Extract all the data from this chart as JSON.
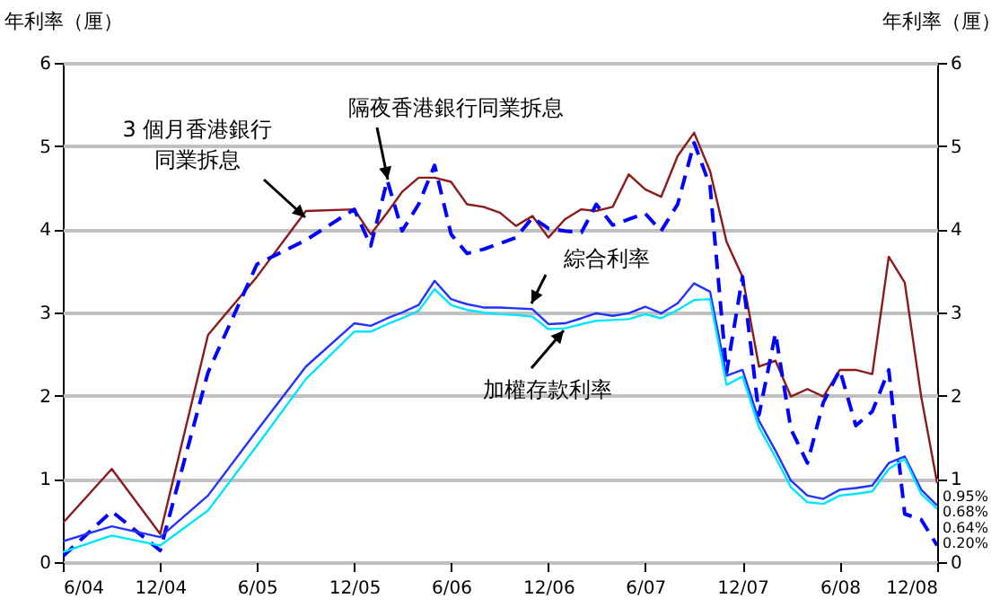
{
  "chart_data": {
    "type": "line",
    "ylabel": "年利率（厘）",
    "y2label": "年利率（厘）",
    "x": [
      "2004-06",
      "2004-09",
      "2004-12",
      "2005-03",
      "2005-06",
      "2005-09",
      "2005-12",
      "2006-01",
      "2006-02",
      "2006-03",
      "2006-04",
      "2006-05",
      "2006-06",
      "2006-07",
      "2006-08",
      "2006-09",
      "2006-10",
      "2006-11",
      "2006-12",
      "2007-01",
      "2007-02",
      "2007-03",
      "2007-04",
      "2007-05",
      "2007-06",
      "2007-07",
      "2007-08",
      "2007-09",
      "2007-10",
      "2007-11",
      "2007-12",
      "2008-01",
      "2008-02",
      "2008-03",
      "2008-04",
      "2008-05",
      "2008-06",
      "2008-07",
      "2008-08",
      "2008-09",
      "2008-10",
      "2008-11",
      "2008-12"
    ],
    "series": [
      {
        "name": "3 個月香港銀行同業拆息",
        "color": "#8b1a1a",
        "line_style": "solid",
        "values": [
          0.47,
          1.12,
          0.34,
          2.73,
          3.43,
          4.22,
          4.24,
          3.94,
          4.2,
          4.45,
          4.62,
          4.62,
          4.57,
          4.3,
          4.27,
          4.2,
          4.04,
          4.16,
          3.9,
          4.12,
          4.24,
          4.22,
          4.27,
          4.66,
          4.48,
          4.39,
          4.88,
          5.16,
          4.7,
          3.85,
          3.43,
          2.35,
          2.42,
          1.99,
          2.08,
          1.99,
          2.31,
          2.31,
          2.26,
          3.67,
          3.36,
          1.99,
          0.95
        ]
      },
      {
        "name": "隔夜香港銀行同業拆息",
        "color": "#0000ff",
        "line_style": "dashed",
        "values": [
          0.07,
          0.61,
          0.14,
          2.28,
          3.58,
          3.87,
          4.24,
          3.8,
          4.59,
          3.98,
          4.3,
          4.77,
          3.94,
          3.71,
          3.76,
          3.83,
          3.9,
          4.14,
          4.01,
          3.98,
          3.96,
          4.3,
          4.05,
          4.12,
          4.19,
          3.98,
          4.3,
          5.04,
          4.52,
          2.28,
          3.43,
          1.77,
          2.75,
          1.6,
          1.19,
          1.92,
          2.31,
          1.64,
          1.81,
          2.31,
          0.58,
          0.51,
          0.2
        ]
      },
      {
        "name": "綜合利率",
        "color": "#2233ff",
        "line_style": "solid",
        "values": [
          0.25,
          0.43,
          0.3,
          0.8,
          1.58,
          2.35,
          2.87,
          2.84,
          2.93,
          3.0,
          3.09,
          3.38,
          3.16,
          3.1,
          3.06,
          3.06,
          3.05,
          3.04,
          2.86,
          2.87,
          2.93,
          2.99,
          2.96,
          2.99,
          3.07,
          2.99,
          3.11,
          3.35,
          3.25,
          2.24,
          2.31,
          1.7,
          1.34,
          0.98,
          0.8,
          0.76,
          0.87,
          0.89,
          0.92,
          1.19,
          1.27,
          0.87,
          0.68
        ]
      },
      {
        "name": "加權存款利率",
        "color": "#00e5ff",
        "line_style": "solid",
        "values": [
          0.12,
          0.32,
          0.2,
          0.62,
          1.4,
          2.2,
          2.77,
          2.77,
          2.86,
          2.93,
          3.02,
          3.28,
          3.09,
          3.03,
          3.0,
          2.98,
          2.97,
          2.95,
          2.8,
          2.81,
          2.86,
          2.9,
          2.91,
          2.92,
          2.98,
          2.93,
          3.03,
          3.15,
          3.16,
          2.13,
          2.23,
          1.62,
          1.26,
          0.9,
          0.72,
          0.7,
          0.8,
          0.82,
          0.85,
          1.12,
          1.24,
          0.82,
          0.64
        ]
      }
    ],
    "xlim": [
      "2004-06",
      "2008-12"
    ],
    "xticks": [
      {
        "value": "2004-06",
        "label": "6/04"
      },
      {
        "value": "2004-12",
        "label": "12/04"
      },
      {
        "value": "2005-06",
        "label": "6/05"
      },
      {
        "value": "2005-12",
        "label": "12/05"
      },
      {
        "value": "2006-06",
        "label": "6/06"
      },
      {
        "value": "2006-12",
        "label": "12/06"
      },
      {
        "value": "2007-06",
        "label": "6/07"
      },
      {
        "value": "2007-12",
        "label": "12/07"
      },
      {
        "value": "2008-06",
        "label": "6/08"
      },
      {
        "value": "2008-12",
        "label": "12/08"
      }
    ],
    "ylim": [
      0,
      6
    ],
    "yticks": [
      0,
      1,
      2,
      3,
      4,
      5,
      6
    ],
    "y2lim": [
      0,
      6
    ],
    "y2ticks": [
      0,
      1,
      2,
      3,
      4,
      5,
      6
    ],
    "grid": "y",
    "marker": "none",
    "annotations": [
      "0.95%",
      "0.68%",
      "0.64%",
      "0.20%"
    ]
  }
}
